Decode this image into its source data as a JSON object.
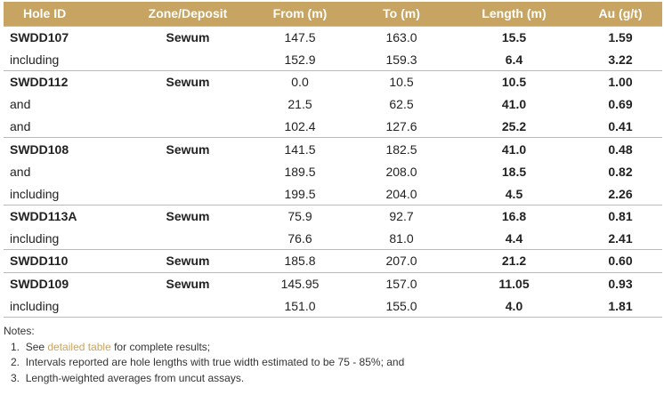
{
  "headers": [
    "Hole ID",
    "Zone/Deposit",
    "From (m)",
    "To (m)",
    "Length (m)",
    "Au (g/t)"
  ],
  "rows": [
    {
      "hole": "SWDD107",
      "zone": "Sewum",
      "from": "147.5",
      "to": "163.0",
      "length": "15.5",
      "au": "1.59",
      "primary": true
    },
    {
      "hole": "including",
      "zone": "",
      "from": "152.9",
      "to": "159.3",
      "length": "6.4",
      "au": "3.22",
      "primary": false
    },
    {
      "hole": "SWDD112",
      "zone": "Sewum",
      "from": "0.0",
      "to": "10.5",
      "length": "10.5",
      "au": "1.00",
      "primary": true
    },
    {
      "hole": "and",
      "zone": "",
      "from": "21.5",
      "to": "62.5",
      "length": "41.0",
      "au": "0.69",
      "primary": false
    },
    {
      "hole": "and",
      "zone": "",
      "from": "102.4",
      "to": "127.6",
      "length": "25.2",
      "au": "0.41",
      "primary": false
    },
    {
      "hole": "SWDD108",
      "zone": "Sewum",
      "from": "141.5",
      "to": "182.5",
      "length": "41.0",
      "au": "0.48",
      "primary": true
    },
    {
      "hole": "and",
      "zone": "",
      "from": "189.5",
      "to": "208.0",
      "length": "18.5",
      "au": "0.82",
      "primary": false
    },
    {
      "hole": "including",
      "zone": "",
      "from": "199.5",
      "to": "204.0",
      "length": "4.5",
      "au": "2.26",
      "primary": false
    },
    {
      "hole": "SWDD113A",
      "zone": "Sewum",
      "from": "75.9",
      "to": "92.7",
      "length": "16.8",
      "au": "0.81",
      "primary": true
    },
    {
      "hole": "including",
      "zone": "",
      "from": "76.6",
      "to": "81.0",
      "length": "4.4",
      "au": "2.41",
      "primary": false
    },
    {
      "hole": "SWDD110",
      "zone": "Sewum",
      "from": "185.8",
      "to": "207.0",
      "length": "21.2",
      "au": "0.60",
      "primary": true
    },
    {
      "hole": "SWDD109",
      "zone": "Sewum",
      "from": "145.95",
      "to": "157.0",
      "length": "11.05",
      "au": "0.93",
      "primary": true
    },
    {
      "hole": "including",
      "zone": "",
      "from": "151.0",
      "to": "155.0",
      "length": "4.0",
      "au": "1.81",
      "primary": false
    }
  ],
  "notes": {
    "heading": "Notes:",
    "item1_number": "1.",
    "item1_before": "See ",
    "item1_link": "detailed table",
    "item1_after": " for complete results;",
    "item2_number": "2.",
    "item2_text": "Intervals reported are hole lengths with true width estimated to be 75 - 85%; and",
    "item3_number": "3.",
    "item3_text": "Length-weighted averages from uncut assays."
  },
  "colors": {
    "header_background": "#c8a463",
    "link": "#c8a463",
    "divider": "#b9b9b9"
  }
}
